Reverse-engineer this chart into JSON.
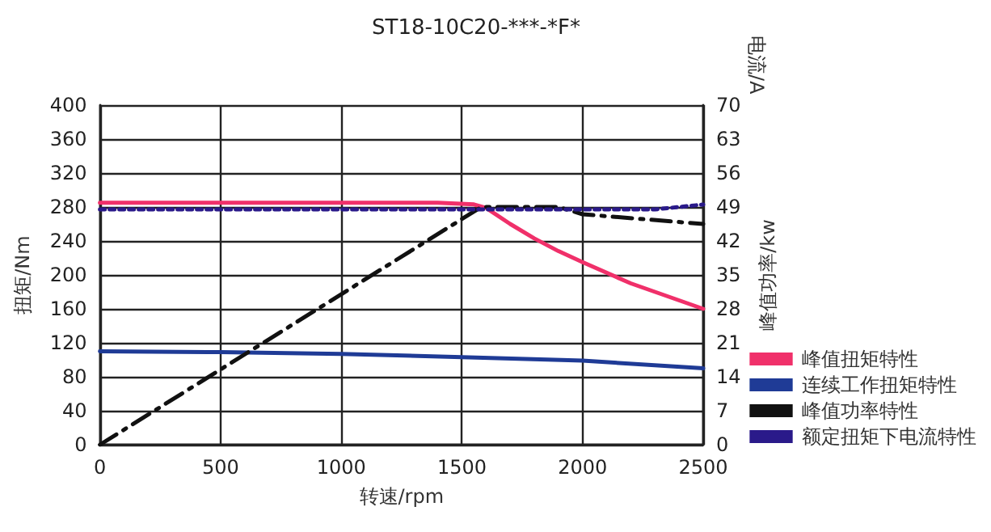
{
  "chart_data": {
    "type": "line",
    "title": "ST18-10C20-***-*F*",
    "xlabel": "转速/rpm",
    "ylabel": "扭矩/Nm",
    "y2label": "峰值功率/kw",
    "annotations": [
      "电流/A"
    ],
    "xlim": [
      0,
      2500
    ],
    "xticks": [
      0,
      500,
      1000,
      1500,
      2000,
      2500
    ],
    "ylim": [
      0,
      400
    ],
    "yticks": [
      0,
      40,
      80,
      120,
      160,
      200,
      240,
      280,
      320,
      360,
      400
    ],
    "y2lim": [
      0,
      70
    ],
    "y2ticks": [
      0,
      7,
      14,
      21,
      28,
      35,
      42,
      49,
      56,
      63,
      70
    ],
    "grid": true,
    "legend": "bottom right",
    "marker": "none",
    "series": [
      {
        "name": "峰值扭矩特性",
        "color": "#f0306a",
        "line_style": "solid",
        "x": [
          0,
          500,
          1000,
          1400,
          1550,
          1600,
          1700,
          1800,
          1900,
          2000,
          2200,
          2400,
          2500
        ],
        "values": [
          285,
          285,
          285,
          285,
          283,
          279,
          260,
          243,
          228,
          215,
          190,
          170,
          160
        ]
      },
      {
        "name": "连续工作扭矩特性",
        "color": "#1f3b96",
        "line_style": "solid",
        "x": [
          0,
          500,
          1000,
          1500,
          2000,
          2500
        ],
        "values": [
          110,
          109,
          107,
          103,
          99,
          90
        ]
      },
      {
        "name": "峰值功率特性",
        "color": "#111111",
        "line_style": "dashed",
        "axis": "y2",
        "x": [
          0,
          1580,
          1900,
          2000,
          2500
        ],
        "values": [
          0,
          49,
          49,
          47.5,
          45.5
        ]
      },
      {
        "name": "额定扭矩下电流特性",
        "color": "#2a1a8a",
        "line_style": "dotted",
        "axis": "y2",
        "x": [
          0,
          1000,
          2000,
          2300,
          2500
        ],
        "values": [
          48.5,
          48.5,
          48.5,
          48.5,
          49.5
        ]
      }
    ]
  }
}
